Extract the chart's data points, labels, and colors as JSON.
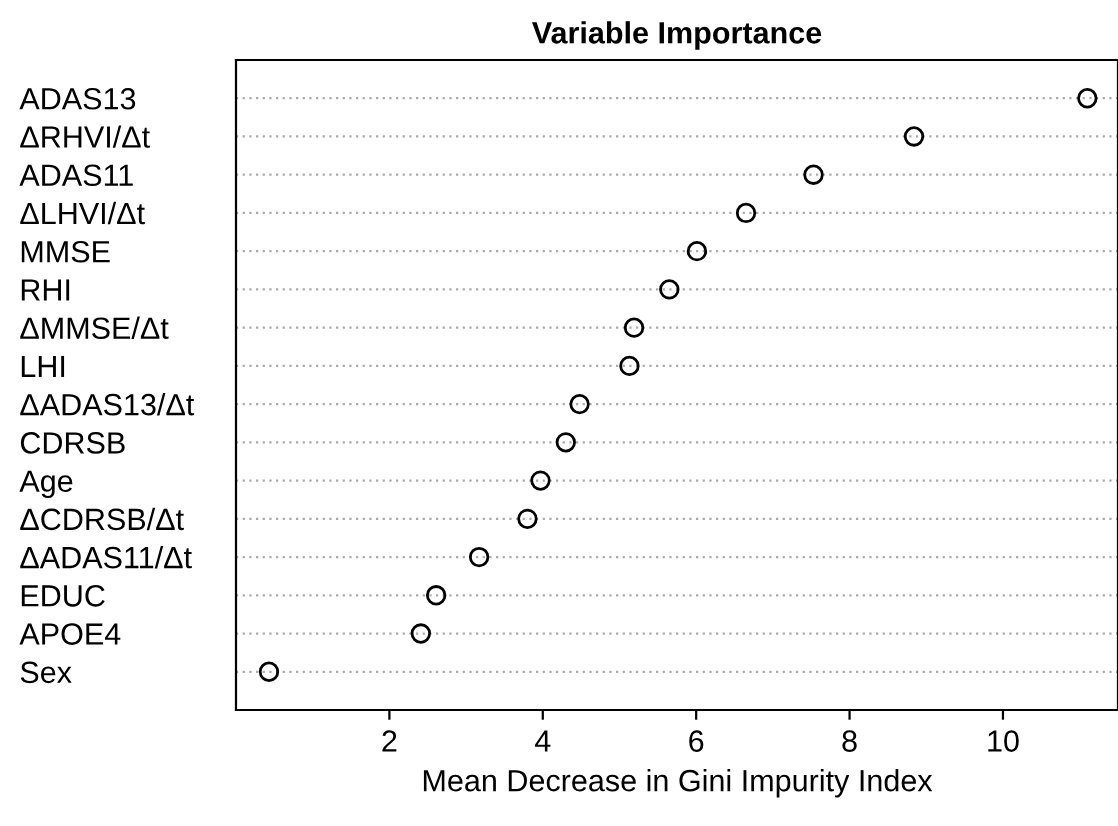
{
  "chart_data": {
    "type": "scatter",
    "orientation": "horizontal",
    "title": "Variable Importance",
    "xlabel": "Mean Decrease in Gini Impurity Index",
    "categories": [
      "ADAS13",
      "ΔRHVI/Δt",
      "ADAS11",
      "ΔLHVI/Δt",
      "MMSE",
      "RHI",
      "ΔMMSE/Δt",
      "LHI",
      "ΔADAS13/Δt",
      "CDRSB",
      "Age",
      "ΔCDRSB/Δt",
      "ΔADAS11/Δt",
      "EDUC",
      "APOE4",
      "Sex"
    ],
    "values": [
      11.1,
      8.84,
      7.53,
      6.65,
      6.01,
      5.65,
      5.19,
      5.13,
      4.48,
      4.3,
      3.97,
      3.8,
      3.17,
      2.61,
      2.41,
      0.43
    ],
    "color": "#000000",
    "marker": "circle",
    "xlim": [
      0,
      11.5
    ],
    "xticks": [
      2,
      4,
      6,
      8,
      10
    ],
    "grid": "y"
  }
}
